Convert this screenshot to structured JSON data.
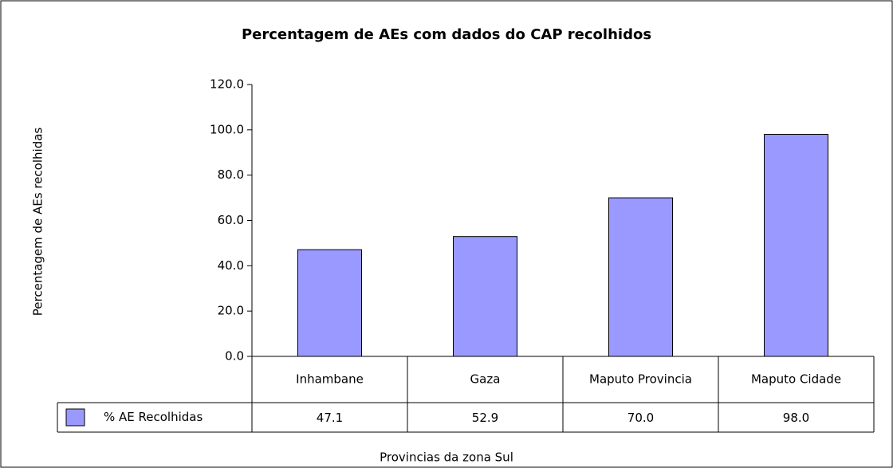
{
  "chart_data": {
    "type": "bar",
    "title": "Percentagem de AEs com dados do CAP recolhidos",
    "x_label": "Provincias da zona Sul",
    "y_label": "Percentagem de AEs recolhidas",
    "categories": [
      "Inhambane",
      "Gaza",
      "Maputo Provincia",
      "Maputo Cidade"
    ],
    "series": [
      {
        "name": "% AE  Recolhidas",
        "color": "#9999ff",
        "values": [
          47.1,
          52.9,
          70,
          98
        ],
        "value_labels": [
          "47.1",
          "52.9",
          "70.0",
          "98.0"
        ]
      }
    ],
    "ylim": [
      0,
      120
    ],
    "yticks": [
      {
        "value": 0,
        "label": "0.0"
      },
      {
        "value": 20,
        "label": "20.0"
      },
      {
        "value": 40,
        "label": "40.0"
      },
      {
        "value": 60,
        "label": "60.0"
      },
      {
        "value": 80,
        "label": "80.0"
      },
      {
        "value": 100,
        "label": "100.0"
      },
      {
        "value": 120,
        "label": "120.0"
      }
    ],
    "grid": false
  }
}
